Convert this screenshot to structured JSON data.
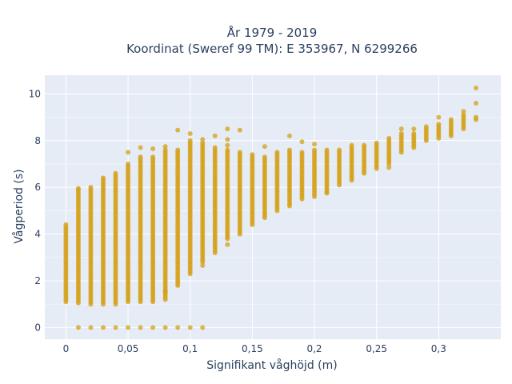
{
  "chart_data": {
    "type": "scatter",
    "title_line1": "År 1979 - 2019",
    "title_line2": "Koordinat (Sweref 99 TM): E 353967, N 6299266",
    "xlabel": "Signifikant våghöjd (m)",
    "ylabel": "Vågperiod (s)",
    "xlim": [
      -0.017,
      0.35
    ],
    "ylim": [
      -0.5,
      10.8
    ],
    "x_ticks": [
      0,
      0.05,
      0.1,
      0.15,
      0.2,
      0.25,
      0.3
    ],
    "x_tick_labels": [
      "0",
      "0,05",
      "0,1",
      "0,15",
      "0,2",
      "0,25",
      "0,3"
    ],
    "y_ticks": [
      0,
      2,
      4,
      6,
      8,
      10
    ],
    "y_tick_labels": [
      "0",
      "2",
      "4",
      "6",
      "8",
      "10"
    ],
    "grid": true,
    "marker_color": "#d4a017",
    "plot_bg": "#e5ecf6",
    "series": [
      {
        "columns": [
          {
            "x": 0.0,
            "ymin": 1.1,
            "ymax": 4.4
          },
          {
            "x": 0.01,
            "ymin": 1.05,
            "ymax": 5.9
          },
          {
            "x": 0.02,
            "ymin": 1.0,
            "ymax": 6.0
          },
          {
            "x": 0.03,
            "ymin": 1.0,
            "ymax": 6.4
          },
          {
            "x": 0.04,
            "ymin": 1.0,
            "ymax": 6.6
          },
          {
            "x": 0.05,
            "ymin": 1.1,
            "ymax": 7.0
          },
          {
            "x": 0.06,
            "ymin": 1.1,
            "ymax": 7.3
          },
          {
            "x": 0.07,
            "ymin": 1.1,
            "ymax": 7.3
          },
          {
            "x": 0.08,
            "ymin": 1.2,
            "ymax": 7.6
          },
          {
            "x": 0.09,
            "ymin": 1.8,
            "ymax": 7.6
          },
          {
            "x": 0.1,
            "ymin": 2.3,
            "ymax": 8.0
          },
          {
            "x": 0.11,
            "ymin": 2.8,
            "ymax": 7.9
          },
          {
            "x": 0.12,
            "ymin": 3.2,
            "ymax": 7.7
          },
          {
            "x": 0.13,
            "ymin": 3.8,
            "ymax": 7.6
          },
          {
            "x": 0.14,
            "ymin": 4.0,
            "ymax": 7.5
          },
          {
            "x": 0.15,
            "ymin": 4.4,
            "ymax": 7.4
          },
          {
            "x": 0.16,
            "ymin": 4.7,
            "ymax": 7.3
          },
          {
            "x": 0.17,
            "ymin": 5.0,
            "ymax": 7.5
          },
          {
            "x": 0.18,
            "ymin": 5.2,
            "ymax": 7.6
          },
          {
            "x": 0.19,
            "ymin": 5.5,
            "ymax": 7.5
          },
          {
            "x": 0.2,
            "ymin": 5.6,
            "ymax": 7.6
          },
          {
            "x": 0.21,
            "ymin": 5.8,
            "ymax": 7.6
          },
          {
            "x": 0.22,
            "ymin": 6.1,
            "ymax": 7.6
          },
          {
            "x": 0.23,
            "ymin": 6.3,
            "ymax": 7.8
          },
          {
            "x": 0.24,
            "ymin": 6.6,
            "ymax": 7.8
          },
          {
            "x": 0.25,
            "ymin": 6.8,
            "ymax": 7.9
          },
          {
            "x": 0.26,
            "ymin": 7.0,
            "ymax": 8.1
          },
          {
            "x": 0.27,
            "ymin": 7.5,
            "ymax": 8.3
          },
          {
            "x": 0.28,
            "ymin": 7.7,
            "ymax": 8.3
          },
          {
            "x": 0.29,
            "ymin": 8.0,
            "ymax": 8.5
          },
          {
            "x": 0.3,
            "ymin": 8.1,
            "ymax": 8.7
          },
          {
            "x": 0.31,
            "ymin": 8.2,
            "ymax": 8.9
          },
          {
            "x": 0.32,
            "ymin": 8.5,
            "ymax": 9.1
          },
          {
            "x": 0.33,
            "ymin": 8.9,
            "ymax": 9.0
          }
        ],
        "extra_points": [
          {
            "x": 0.01,
            "y": 0
          },
          {
            "x": 0.02,
            "y": 0
          },
          {
            "x": 0.03,
            "y": 0
          },
          {
            "x": 0.04,
            "y": 0
          },
          {
            "x": 0.05,
            "y": 0
          },
          {
            "x": 0.06,
            "y": 0
          },
          {
            "x": 0.07,
            "y": 0
          },
          {
            "x": 0.08,
            "y": 0
          },
          {
            "x": 0.09,
            "y": 0
          },
          {
            "x": 0.1,
            "y": 0
          },
          {
            "x": 0.11,
            "y": 0
          },
          {
            "x": 0.01,
            "y": 5.95
          },
          {
            "x": 0.05,
            "y": 7.5
          },
          {
            "x": 0.06,
            "y": 7.7
          },
          {
            "x": 0.07,
            "y": 7.65
          },
          {
            "x": 0.08,
            "y": 7.75
          },
          {
            "x": 0.09,
            "y": 8.45
          },
          {
            "x": 0.1,
            "y": 8.3
          },
          {
            "x": 0.11,
            "y": 8.05
          },
          {
            "x": 0.12,
            "y": 8.2
          },
          {
            "x": 0.13,
            "y": 8.5
          },
          {
            "x": 0.13,
            "y": 8.05
          },
          {
            "x": 0.13,
            "y": 7.8
          },
          {
            "x": 0.13,
            "y": 3.55
          },
          {
            "x": 0.14,
            "y": 8.45
          },
          {
            "x": 0.11,
            "y": 2.65
          },
          {
            "x": 0.16,
            "y": 7.75
          },
          {
            "x": 0.18,
            "y": 8.2
          },
          {
            "x": 0.19,
            "y": 7.95
          },
          {
            "x": 0.2,
            "y": 7.85
          },
          {
            "x": 0.21,
            "y": 5.75
          },
          {
            "x": 0.26,
            "y": 6.85
          },
          {
            "x": 0.27,
            "y": 8.5
          },
          {
            "x": 0.28,
            "y": 8.5
          },
          {
            "x": 0.29,
            "y": 8.6
          },
          {
            "x": 0.3,
            "y": 9.0
          },
          {
            "x": 0.32,
            "y": 9.25
          },
          {
            "x": 0.33,
            "y": 9.6
          },
          {
            "x": 0.33,
            "y": 10.25
          },
          {
            "x": 0.08,
            "y": 1.55
          }
        ]
      }
    ]
  }
}
